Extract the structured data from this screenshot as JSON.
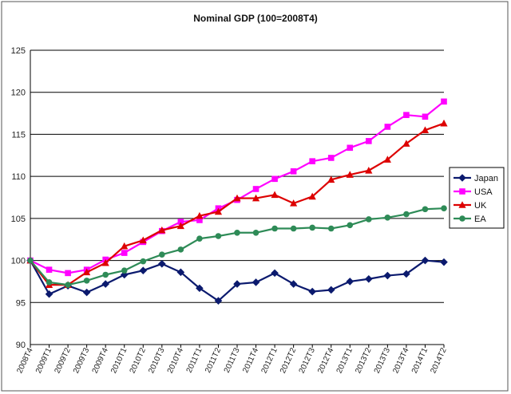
{
  "chart_data": {
    "type": "line",
    "title": "Nominal GDP (100=2008T4)",
    "xlabel": "",
    "ylabel": "",
    "ylim": [
      90,
      125
    ],
    "yticks": [
      90,
      95,
      100,
      105,
      110,
      115,
      120,
      125
    ],
    "grid": "horizontal",
    "legend_position": "right",
    "categories": [
      "2008T4",
      "2009T1",
      "2009T2",
      "2009T3",
      "2009T4",
      "2010T1",
      "2010T2",
      "2010T3",
      "2010T4",
      "2011T1",
      "2011T2",
      "2011T3",
      "2011T4",
      "2012T1",
      "2012T2",
      "2012T3",
      "2012T4",
      "2013T1",
      "2013T2",
      "2013T3",
      "2013T4",
      "2014T1",
      "2014T2"
    ],
    "tick_labels": [
      "2008T4",
      "2009T1",
      "2009T2",
      "2009T3",
      "2009T4",
      "2010T1",
      "2010T2",
      "2010T3",
      "2010T4",
      "2011T1",
      "2011T2",
      "2011T3",
      "2011T4",
      "2012T1",
      "2012T2",
      "2012T3",
      "2012T4",
      "2013T1",
      "2013T2",
      "2013T3",
      "2013T4",
      "2014T1",
      "2014T2"
    ],
    "series": [
      {
        "name": "Japan",
        "color": "#0b1a6e",
        "marker": "diamond",
        "values": [
          100.0,
          96.0,
          97.0,
          96.2,
          97.2,
          98.3,
          98.8,
          99.6,
          98.6,
          96.7,
          95.2,
          97.2,
          97.4,
          98.5,
          97.2,
          96.3,
          96.5,
          97.5,
          97.8,
          98.2,
          98.4,
          100.0,
          99.8
        ]
      },
      {
        "name": "USA",
        "color": "#ff00ff",
        "marker": "square",
        "values": [
          100.0,
          98.9,
          98.5,
          98.9,
          100.1,
          100.9,
          102.2,
          103.5,
          104.6,
          104.8,
          106.2,
          107.2,
          108.5,
          109.7,
          110.6,
          111.8,
          112.2,
          113.4,
          114.2,
          115.9,
          117.3,
          117.1,
          118.9
        ]
      },
      {
        "name": "UK",
        "color": "#dd0000",
        "marker": "triangle",
        "values": [
          100.0,
          97.1,
          97.1,
          98.6,
          99.7,
          101.7,
          102.4,
          103.6,
          104.1,
          105.3,
          105.8,
          107.4,
          107.4,
          107.8,
          106.8,
          107.6,
          109.6,
          110.2,
          110.7,
          112.0,
          113.9,
          115.5,
          116.3
        ]
      },
      {
        "name": "EA",
        "color": "#2e8b57",
        "marker": "circle",
        "values": [
          100.0,
          97.4,
          97.1,
          97.6,
          98.3,
          98.8,
          99.9,
          100.7,
          101.3,
          102.6,
          102.9,
          103.3,
          103.3,
          103.8,
          103.8,
          103.9,
          103.8,
          104.2,
          104.9,
          105.1,
          105.5,
          106.1,
          106.2
        ]
      }
    ]
  }
}
